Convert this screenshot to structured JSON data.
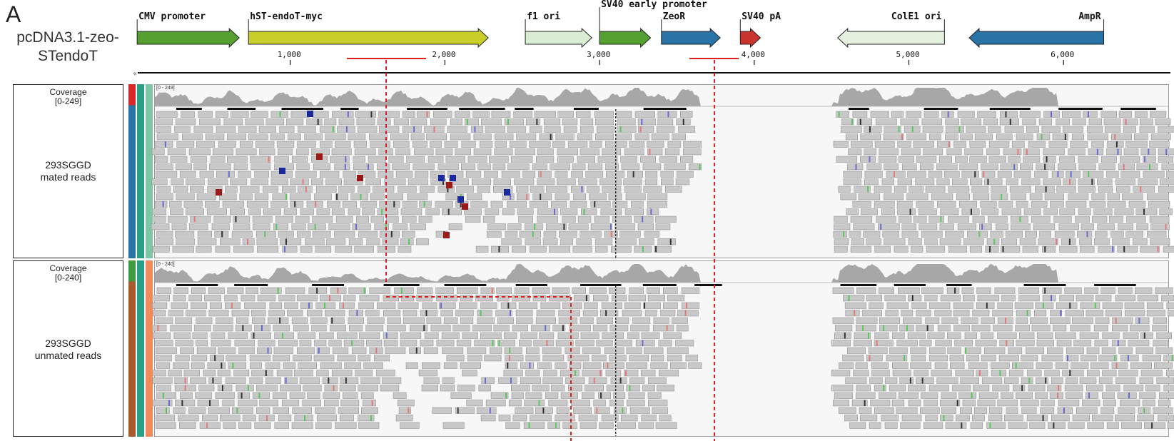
{
  "panel_letter": "A",
  "plasmid": {
    "line1": "pcDNA3.1-zeo-",
    "line2": "STendoT"
  },
  "genome": {
    "start": 1,
    "end": 6300
  },
  "features": [
    {
      "name": "CMV promoter",
      "start": 10,
      "end": 670,
      "strand": "+",
      "color": "#55a031"
    },
    {
      "name": "hST-endoT-myc",
      "start": 730,
      "end": 2280,
      "strand": "+",
      "color": "#c9cf2a"
    },
    {
      "name": "f1 ori",
      "start": 2520,
      "end": 2950,
      "strand": "+",
      "color": "#d9ecd4"
    },
    {
      "name": "SV40 early promoter",
      "start": 3000,
      "end": 3330,
      "strand": "+",
      "color": "#55a031"
    },
    {
      "name": "ZeoR",
      "start": 3400,
      "end": 3780,
      "strand": "+",
      "color": "#2a73a6"
    },
    {
      "name": "SV40 pA",
      "start": 3910,
      "end": 4040,
      "strand": "+",
      "color": "#c9342f"
    },
    {
      "name": "ColE1 ori",
      "start": 4540,
      "end": 5230,
      "strand": "-",
      "color": "#e4f1df"
    },
    {
      "name": "AmpR",
      "start": 5390,
      "end": 6260,
      "strand": "-",
      "color": "#2a73a6"
    }
  ],
  "ticks": [
    {
      "pos": 1000,
      "label": "1,000"
    },
    {
      "pos": 2000,
      "label": "2,000"
    },
    {
      "pos": 3000,
      "label": "3,000"
    },
    {
      "pos": 4000,
      "label": "4,000"
    },
    {
      "pos": 5000,
      "label": "5,000"
    },
    {
      "pos": 6000,
      "label": "6,000"
    }
  ],
  "tracks": [
    {
      "coverage_label": "Coverage",
      "coverage_range": "[0-249]",
      "range_tag": "[0 - 249]",
      "sample": "293SGGD",
      "reads_label": "mated reads",
      "swatches": [
        "#d62a28",
        "#2a73a6",
        "#29a083",
        "#7fc6a8"
      ]
    },
    {
      "coverage_label": "Coverage",
      "coverage_range": "[0-240]",
      "range_tag": "[0 - 240]",
      "sample": "293SGGD",
      "reads_label": "unmated reads",
      "swatches": [
        "#3f9a3f",
        "#a85a2e",
        "#29a083",
        "#f08a5b"
      ]
    }
  ],
  "colors": {
    "read_fill": "#c8c8c8",
    "coverage_fill": "#a7a7a7",
    "marker_red": "#e02020"
  }
}
